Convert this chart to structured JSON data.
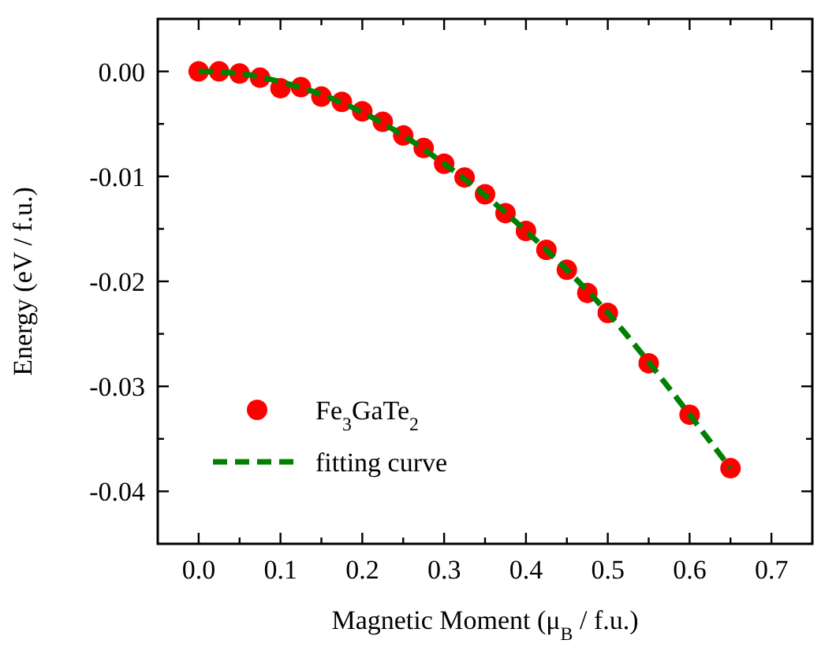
{
  "chart_data": {
    "type": "scatter",
    "xlabel": "Magnetic Moment (μ$_{B}$ / f.u.)",
    "ylabel": "Energy (eV / f.u.)",
    "xlim": [
      -0.05,
      0.75
    ],
    "ylim": [
      -0.045,
      0.005
    ],
    "xticks": [
      {
        "value": 0,
        "label": "0.0"
      },
      {
        "value": 0.05,
        "label": null
      },
      {
        "value": 0.1,
        "label": "0.1"
      },
      {
        "value": 0.15,
        "label": null
      },
      {
        "value": 0.2,
        "label": "0.2"
      },
      {
        "value": 0.25,
        "label": null
      },
      {
        "value": 0.3,
        "label": "0.3"
      },
      {
        "value": 0.35,
        "label": null
      },
      {
        "value": 0.4,
        "label": "0.4"
      },
      {
        "value": 0.45,
        "label": null
      },
      {
        "value": 0.5,
        "label": "0.5"
      },
      {
        "value": 0.55,
        "label": null
      },
      {
        "value": 0.6,
        "label": "0.6"
      },
      {
        "value": 0.65,
        "label": null
      },
      {
        "value": 0.7,
        "label": "0.7"
      }
    ],
    "yticks": [
      {
        "value": 0,
        "label": "0.00"
      },
      {
        "value": -0.005,
        "label": null
      },
      {
        "value": -0.01,
        "label": "-0.01"
      },
      {
        "value": -0.015,
        "label": null
      },
      {
        "value": -0.02,
        "label": "-0.02"
      },
      {
        "value": -0.025,
        "label": null
      },
      {
        "value": -0.03,
        "label": "-0.03"
      },
      {
        "value": -0.035,
        "label": null
      },
      {
        "value": -0.04,
        "label": "-0.04"
      }
    ],
    "grid": false,
    "legend": "bottom left",
    "series": [
      {
        "name": "Fe$_{3}$GaTe$_{2}$",
        "marker": "circle",
        "color": "#ff0000",
        "x": [
          0,
          0.025,
          0.05,
          0.075,
          0.1,
          0.125,
          0.15,
          0.175,
          0.2,
          0.225,
          0.25,
          0.275,
          0.3,
          0.325,
          0.35,
          0.375,
          0.4,
          0.425,
          0.45,
          0.475,
          0.5,
          0.55,
          0.6,
          0.65
        ],
        "values": [
          0,
          0,
          -0.0002,
          -0.0006,
          -0.0016,
          -0.0015,
          -0.0024,
          -0.0029,
          -0.0038,
          -0.0048,
          -0.0061,
          -0.0073,
          -0.0088,
          -0.0101,
          -0.0117,
          -0.0135,
          -0.0152,
          -0.017,
          -0.0189,
          -0.0211,
          -0.023,
          -0.0278,
          -0.0327,
          -0.0378
        ]
      },
      {
        "name": "fitting curve",
        "type": "line",
        "line_style": "dashed",
        "marker": "none",
        "color": "#008000",
        "x": [
          0,
          0.05,
          0.1,
          0.15,
          0.2,
          0.25,
          0.3,
          0.35,
          0.4,
          0.45,
          0.5,
          0.55,
          0.6,
          0.65
        ],
        "values": [
          0,
          -0.0002,
          -0.001,
          -0.0022,
          -0.0039,
          -0.0061,
          -0.0088,
          -0.0118,
          -0.0152,
          -0.0189,
          -0.023,
          -0.0277,
          -0.0327,
          -0.0378
        ]
      }
    ]
  }
}
